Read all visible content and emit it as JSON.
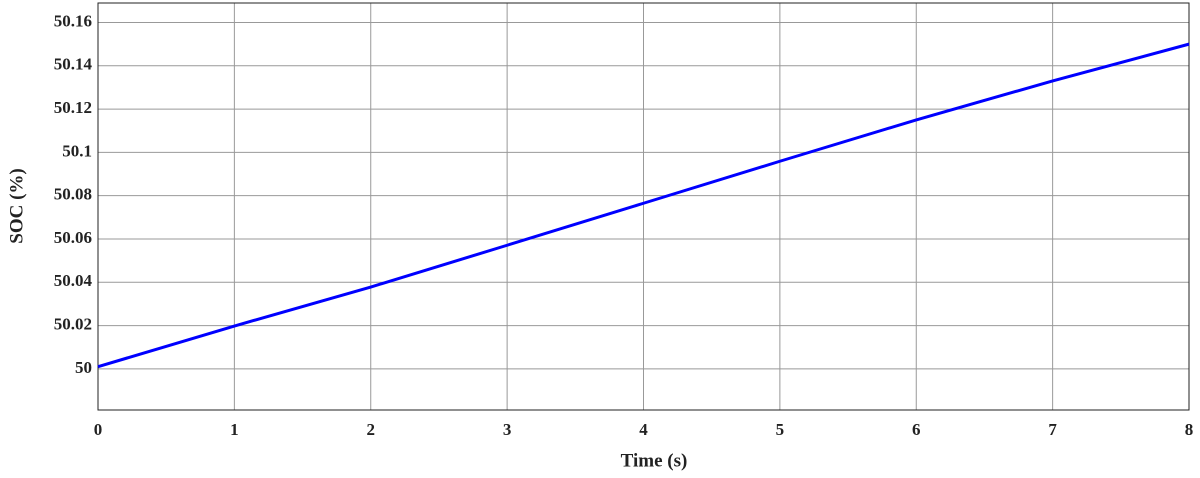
{
  "chart_data": {
    "type": "line",
    "x_label": "Time (s)",
    "y_label": "SOC (%)",
    "x": [
      0,
      1,
      2,
      3,
      4,
      5,
      6,
      7,
      8
    ],
    "series": [
      {
        "name": "SOC",
        "color": "#0000ff",
        "values": [
          50.001,
          50.0198,
          50.0378,
          50.0571,
          50.0765,
          50.0959,
          50.115,
          50.133,
          50.15
        ]
      }
    ],
    "xlim": [
      0,
      8
    ],
    "xticks": [
      0,
      1,
      2,
      3,
      4,
      5,
      6,
      7,
      8
    ],
    "ylim": [
      49.981,
      50.169
    ],
    "yticks": [
      50,
      50.02,
      50.04,
      50.06,
      50.08,
      50.1,
      50.12,
      50.14,
      50.16
    ],
    "grid": true
  }
}
